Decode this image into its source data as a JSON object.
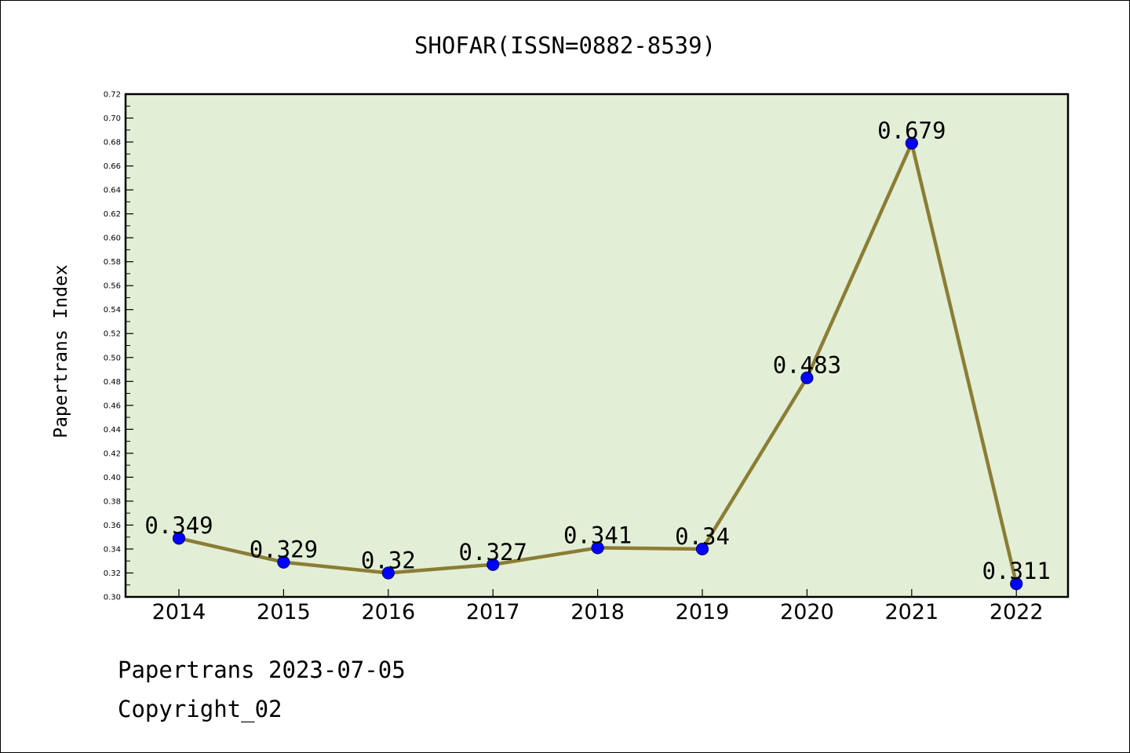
{
  "chart_data": {
    "type": "line",
    "title": "SHOFAR(ISSN=0882-8539)",
    "xlabel": "",
    "ylabel": "Papertrans Index",
    "categories": [
      "2014",
      "2015",
      "2016",
      "2017",
      "2018",
      "2019",
      "2020",
      "2021",
      "2022"
    ],
    "series": [
      {
        "values": [
          0.349,
          0.329,
          0.32,
          0.327,
          0.341,
          0.34,
          0.483,
          0.679,
          0.311
        ]
      }
    ],
    "data_labels": [
      "0.349",
      "0.329",
      "0.32",
      "0.327",
      "0.341",
      "0.34",
      "0.483",
      "0.679",
      "0.311"
    ],
    "ylim": [
      0.3,
      0.72
    ],
    "y_ticks": [
      "0.30",
      "0.32",
      "0.34",
      "0.36",
      "0.38",
      "0.40",
      "0.42",
      "0.44",
      "0.46",
      "0.48",
      "0.50",
      "0.52",
      "0.54",
      "0.56",
      "0.58",
      "0.60",
      "0.62",
      "0.64",
      "0.66",
      "0.68",
      "0.70",
      "0.72"
    ],
    "grid": false,
    "legend": "none",
    "colors": {
      "plot_background": "#e2efd6",
      "line": "#8b7d35",
      "marker": "#0000ff",
      "marker_edge": "#000080"
    }
  },
  "footer": {
    "date_line": "Papertrans 2023-07-05",
    "copyright": "Copyright_02"
  }
}
